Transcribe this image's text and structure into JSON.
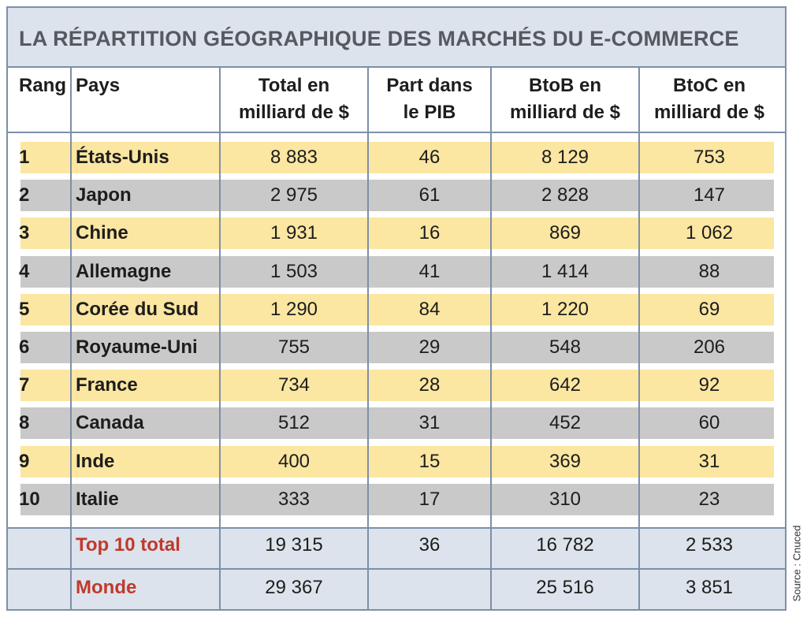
{
  "title": "LA RÉPARTITION GÉOGRAPHIQUE DES MARCHÉS DU E-COMMERCE",
  "headers": {
    "rang": "Rang",
    "pays": "Pays",
    "total_1": "Total en",
    "total_2": "milliard de $",
    "part_1": "Part dans",
    "part_2": "le PIB",
    "btob_1": "BtoB en",
    "btob_2": "milliard de $",
    "btoc_1": "BtoC en",
    "btoc_2": "milliard de $"
  },
  "rows": [
    {
      "rank": "1",
      "country": "États-Unis",
      "total": "8 883",
      "part": "46",
      "btob": "8 129",
      "btoc": "753"
    },
    {
      "rank": "2",
      "country": "Japon",
      "total": "2 975",
      "part": "61",
      "btob": "2 828",
      "btoc": "147"
    },
    {
      "rank": "3",
      "country": "Chine",
      "total": "1 931",
      "part": "16",
      "btob": "869",
      "btoc": "1 062"
    },
    {
      "rank": "4",
      "country": "Allemagne",
      "total": "1 503",
      "part": "41",
      "btob": "1 414",
      "btoc": "88"
    },
    {
      "rank": "5",
      "country": "Corée du Sud",
      "total": "1 290",
      "part": "84",
      "btob": "1 220",
      "btoc": "69"
    },
    {
      "rank": "6",
      "country": "Royaume-Uni",
      "total": "755",
      "part": "29",
      "btob": "548",
      "btoc": "206"
    },
    {
      "rank": "7",
      "country": "France",
      "total": "734",
      "part": "28",
      "btob": "642",
      "btoc": "92"
    },
    {
      "rank": "8",
      "country": "Canada",
      "total": "512",
      "part": "31",
      "btob": "452",
      "btoc": "60"
    },
    {
      "rank": "9",
      "country": "Inde",
      "total": "400",
      "part": "15",
      "btob": "369",
      "btoc": "31"
    },
    {
      "rank": "10",
      "country": "Italie",
      "total": "333",
      "part": "17",
      "btob": "310",
      "btoc": "23"
    }
  ],
  "footer": [
    {
      "label": "Top 10 total",
      "total": "19 315",
      "part": "36",
      "btob": "16 782",
      "btoc": "2 533"
    },
    {
      "label": "Monde",
      "total": "29 367",
      "part": "",
      "btob": "25 516",
      "btoc": "3 851"
    }
  ],
  "source": "Source : Cnuced",
  "colors": {
    "title_bg": "#dde3ec",
    "title_text": "#555a60",
    "row_yellow": "#fbe6a2",
    "row_grey": "#c9c9c9",
    "footer_label": "#c0392b",
    "border": "#7d8fa8"
  }
}
